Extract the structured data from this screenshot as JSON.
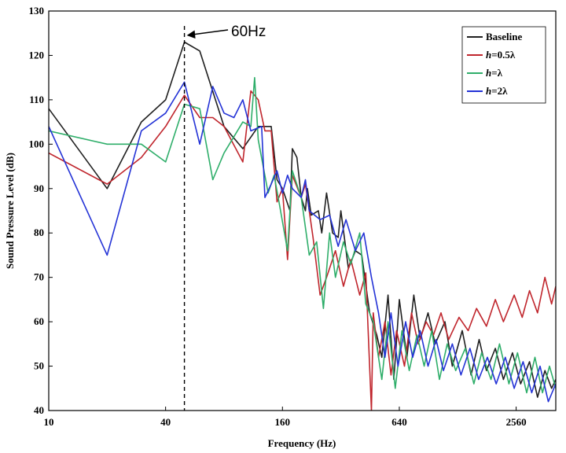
{
  "chart_data": {
    "type": "line",
    "xscale": "log2",
    "xlabel": "Frequency (Hz)",
    "ylabel": "Sound Pressure Level (dB)",
    "xlim": [
      10,
      4096
    ],
    "ylim": [
      40,
      130
    ],
    "xticks": [
      "10",
      "40",
      "160",
      "640",
      "2560"
    ],
    "yticks": [
      "40",
      "50",
      "60",
      "70",
      "80",
      "90",
      "100",
      "110",
      "120",
      "130"
    ],
    "grid": false,
    "legend_position": "top-right",
    "annotation": {
      "text": "60Hz",
      "x": 50
    },
    "series": [
      {
        "name": "Baseline",
        "color": "#202020",
        "points": [
          [
            10,
            108
          ],
          [
            20,
            90
          ],
          [
            30,
            105
          ],
          [
            40,
            110
          ],
          [
            50,
            123
          ],
          [
            60,
            121
          ],
          [
            80,
            104
          ],
          [
            100,
            99
          ],
          [
            120,
            104
          ],
          [
            140,
            104
          ],
          [
            150,
            92
          ],
          [
            160,
            90
          ],
          [
            175,
            85
          ],
          [
            180,
            99
          ],
          [
            190,
            97
          ],
          [
            200,
            88
          ],
          [
            210,
            85
          ],
          [
            215,
            90
          ],
          [
            225,
            84
          ],
          [
            245,
            85
          ],
          [
            255,
            80
          ],
          [
            270,
            89
          ],
          [
            290,
            80
          ],
          [
            310,
            79
          ],
          [
            320,
            85
          ],
          [
            350,
            72
          ],
          [
            380,
            76
          ],
          [
            410,
            75
          ],
          [
            450,
            62
          ],
          [
            490,
            57
          ],
          [
            520,
            52
          ],
          [
            560,
            66
          ],
          [
            600,
            47
          ],
          [
            640,
            65
          ],
          [
            700,
            52
          ],
          [
            760,
            66
          ],
          [
            820,
            56
          ],
          [
            900,
            62
          ],
          [
            980,
            55
          ],
          [
            1100,
            60
          ],
          [
            1200,
            50
          ],
          [
            1350,
            58
          ],
          [
            1500,
            48
          ],
          [
            1650,
            56
          ],
          [
            1800,
            49
          ],
          [
            2000,
            54
          ],
          [
            2200,
            47
          ],
          [
            2450,
            53
          ],
          [
            2700,
            46
          ],
          [
            3000,
            51
          ],
          [
            3300,
            43
          ],
          [
            3600,
            49
          ],
          [
            3900,
            45
          ],
          [
            4096,
            47
          ]
        ]
      },
      {
        "name": "h=0.5λ",
        "color": "#c0262d",
        "points": [
          [
            10,
            98
          ],
          [
            20,
            91
          ],
          [
            30,
            97
          ],
          [
            40,
            104
          ],
          [
            50,
            111
          ],
          [
            60,
            106
          ],
          [
            70,
            106
          ],
          [
            80,
            104
          ],
          [
            100,
            96
          ],
          [
            110,
            112
          ],
          [
            120,
            110
          ],
          [
            130,
            103
          ],
          [
            140,
            103
          ],
          [
            150,
            87
          ],
          [
            160,
            90
          ],
          [
            170,
            74
          ],
          [
            180,
            93
          ],
          [
            200,
            88
          ],
          [
            210,
            91
          ],
          [
            230,
            79
          ],
          [
            250,
            66
          ],
          [
            270,
            70
          ],
          [
            300,
            76
          ],
          [
            330,
            68
          ],
          [
            360,
            74
          ],
          [
            400,
            66
          ],
          [
            430,
            71
          ],
          [
            460,
            40
          ],
          [
            470,
            62
          ],
          [
            500,
            52
          ],
          [
            540,
            60
          ],
          [
            580,
            48
          ],
          [
            620,
            58
          ],
          [
            680,
            50
          ],
          [
            740,
            62
          ],
          [
            800,
            55
          ],
          [
            880,
            60
          ],
          [
            960,
            57
          ],
          [
            1050,
            62
          ],
          [
            1150,
            56
          ],
          [
            1300,
            61
          ],
          [
            1450,
            58
          ],
          [
            1600,
            63
          ],
          [
            1800,
            59
          ],
          [
            2000,
            65
          ],
          [
            2200,
            60
          ],
          [
            2500,
            66
          ],
          [
            2750,
            61
          ],
          [
            3000,
            67
          ],
          [
            3300,
            62
          ],
          [
            3600,
            70
          ],
          [
            3900,
            64
          ],
          [
            4096,
            68
          ]
        ]
      },
      {
        "name": "h=λ",
        "color": "#2fae6a",
        "points": [
          [
            10,
            103
          ],
          [
            20,
            100
          ],
          [
            30,
            100
          ],
          [
            40,
            96
          ],
          [
            50,
            109
          ],
          [
            60,
            108
          ],
          [
            70,
            92
          ],
          [
            80,
            98
          ],
          [
            100,
            105
          ],
          [
            110,
            104
          ],
          [
            115,
            115
          ],
          [
            120,
            101
          ],
          [
            135,
            89
          ],
          [
            145,
            93
          ],
          [
            155,
            86
          ],
          [
            170,
            76
          ],
          [
            180,
            94
          ],
          [
            200,
            88
          ],
          [
            220,
            75
          ],
          [
            240,
            78
          ],
          [
            260,
            63
          ],
          [
            280,
            80
          ],
          [
            300,
            70
          ],
          [
            330,
            78
          ],
          [
            360,
            73
          ],
          [
            400,
            80
          ],
          [
            430,
            64
          ],
          [
            470,
            60
          ],
          [
            520,
            47
          ],
          [
            560,
            60
          ],
          [
            610,
            45
          ],
          [
            660,
            58
          ],
          [
            720,
            49
          ],
          [
            790,
            57
          ],
          [
            860,
            50
          ],
          [
            940,
            58
          ],
          [
            1030,
            47
          ],
          [
            1130,
            55
          ],
          [
            1250,
            49
          ],
          [
            1400,
            54
          ],
          [
            1550,
            46
          ],
          [
            1700,
            53
          ],
          [
            1900,
            47
          ],
          [
            2100,
            55
          ],
          [
            2350,
            46
          ],
          [
            2600,
            53
          ],
          [
            2900,
            44
          ],
          [
            3200,
            52
          ],
          [
            3500,
            44
          ],
          [
            3800,
            50
          ],
          [
            4096,
            45
          ]
        ]
      },
      {
        "name": "h=2λ",
        "color": "#2433d6",
        "points": [
          [
            10,
            104
          ],
          [
            20,
            75
          ],
          [
            30,
            103
          ],
          [
            40,
            107
          ],
          [
            50,
            114
          ],
          [
            60,
            100
          ],
          [
            70,
            113
          ],
          [
            80,
            107
          ],
          [
            90,
            106
          ],
          [
            100,
            110
          ],
          [
            110,
            103
          ],
          [
            125,
            104
          ],
          [
            130,
            88
          ],
          [
            140,
            91
          ],
          [
            150,
            94
          ],
          [
            160,
            89
          ],
          [
            170,
            93
          ],
          [
            180,
            90
          ],
          [
            200,
            88
          ],
          [
            210,
            92
          ],
          [
            220,
            85
          ],
          [
            250,
            83
          ],
          [
            280,
            84
          ],
          [
            310,
            77
          ],
          [
            340,
            83
          ],
          [
            380,
            76
          ],
          [
            420,
            80
          ],
          [
            460,
            70
          ],
          [
            500,
            62
          ],
          [
            540,
            52
          ],
          [
            580,
            62
          ],
          [
            630,
            50
          ],
          [
            690,
            60
          ],
          [
            750,
            52
          ],
          [
            820,
            58
          ],
          [
            900,
            50
          ],
          [
            990,
            56
          ],
          [
            1080,
            49
          ],
          [
            1200,
            55
          ],
          [
            1330,
            48
          ],
          [
            1480,
            54
          ],
          [
            1640,
            47
          ],
          [
            1820,
            52
          ],
          [
            2020,
            46
          ],
          [
            2250,
            52
          ],
          [
            2500,
            45
          ],
          [
            2780,
            51
          ],
          [
            3080,
            44
          ],
          [
            3400,
            50
          ],
          [
            3750,
            42
          ],
          [
            4096,
            46
          ]
        ]
      }
    ]
  }
}
